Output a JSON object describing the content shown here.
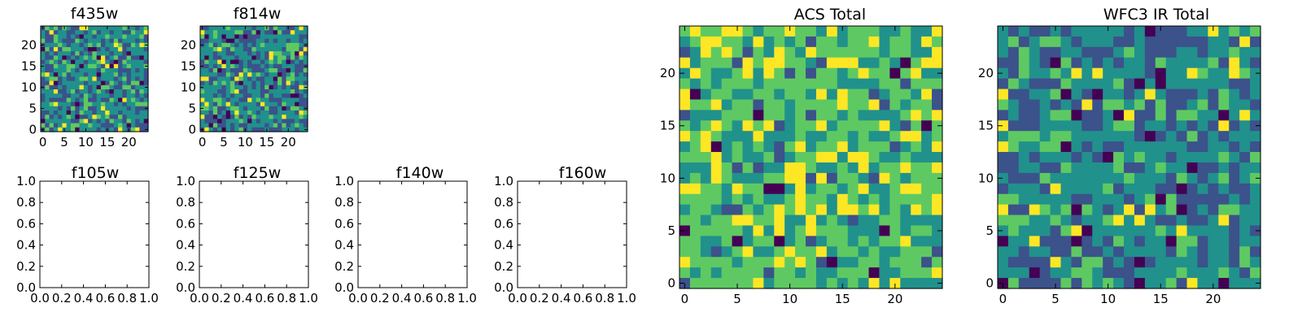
{
  "figure": {
    "background": "#ffffff",
    "colormap": [
      "#440154",
      "#3b528b",
      "#21918c",
      "#5ec962",
      "#fde725"
    ]
  },
  "chart_data": [
    {
      "type": "heatmap",
      "title": "f435w",
      "grid_size": 25,
      "xticks": [
        0,
        5,
        10,
        15,
        20
      ],
      "yticks": [
        0,
        5,
        10,
        15,
        20
      ],
      "palette": "#21918c",
      "xlim": [
        -0.5,
        24.5
      ],
      "ylim": [
        -0.5,
        24.5
      ]
    },
    {
      "type": "heatmap",
      "title": "f814w",
      "grid_size": 25,
      "xticks": [
        0,
        5,
        10,
        15,
        20
      ],
      "yticks": [
        0,
        5,
        10,
        15,
        20
      ],
      "palette": "#21918c",
      "xlim": [
        -0.5,
        24.5
      ],
      "ylim": [
        -0.5,
        24.5
      ]
    },
    {
      "type": "empty",
      "title": "f105w",
      "xticks": [
        0.0,
        0.2,
        0.4,
        0.6,
        0.8,
        1.0
      ],
      "yticks": [
        0.0,
        0.2,
        0.4,
        0.6,
        0.8,
        1.0
      ],
      "xlim": [
        0,
        1
      ],
      "ylim": [
        0,
        1
      ]
    },
    {
      "type": "empty",
      "title": "f125w",
      "xticks": [
        0.0,
        0.2,
        0.4,
        0.6,
        0.8,
        1.0
      ],
      "yticks": [
        0.0,
        0.2,
        0.4,
        0.6,
        0.8,
        1.0
      ],
      "xlim": [
        0,
        1
      ],
      "ylim": [
        0,
        1
      ]
    },
    {
      "type": "empty",
      "title": "f140w",
      "xticks": [
        0.0,
        0.2,
        0.4,
        0.6,
        0.8,
        1.0
      ],
      "yticks": [
        0.0,
        0.2,
        0.4,
        0.6,
        0.8,
        1.0
      ],
      "xlim": [
        0,
        1
      ],
      "ylim": [
        0,
        1
      ]
    },
    {
      "type": "empty",
      "title": "f160w",
      "xticks": [
        0.0,
        0.2,
        0.4,
        0.6,
        0.8,
        1.0
      ],
      "yticks": [
        0.0,
        0.2,
        0.4,
        0.6,
        0.8,
        1.0
      ],
      "xlim": [
        0,
        1
      ],
      "ylim": [
        0,
        1
      ]
    },
    {
      "type": "heatmap",
      "title": "ACS Total",
      "grid_size": 25,
      "xticks": [
        0,
        5,
        10,
        15,
        20
      ],
      "yticks": [
        0,
        5,
        10,
        15,
        20
      ],
      "palette": "#5ec962",
      "xlim": [
        -0.5,
        24.5
      ],
      "ylim": [
        -0.5,
        24.5
      ]
    },
    {
      "type": "heatmap",
      "title": "WFC3 IR Total",
      "grid_size": 25,
      "xticks": [
        0,
        5,
        10,
        15,
        20
      ],
      "yticks": [
        0,
        5,
        10,
        15,
        20
      ],
      "palette": "#21918c",
      "xlim": [
        -0.5,
        24.5
      ],
      "ylim": [
        -0.5,
        24.5
      ]
    }
  ]
}
